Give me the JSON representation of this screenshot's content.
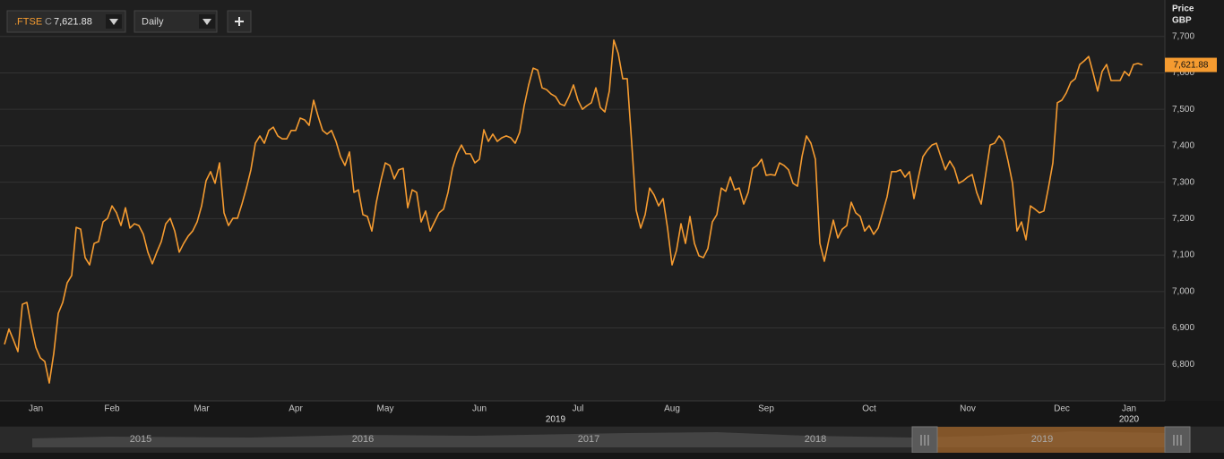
{
  "toolbar": {
    "instrument_prefix": "C",
    "price": "7,621.88",
    "interval": "Daily"
  },
  "chart_data": {
    "type": "line",
    "axis_title": "Price",
    "axis_unit": "GBP",
    "ylim": [
      6700,
      7800
    ],
    "yticks": [
      {
        "value": 6800,
        "label": "6,800"
      },
      {
        "value": 6900,
        "label": "6,900"
      },
      {
        "value": 7000,
        "label": "7,000"
      },
      {
        "value": 7100,
        "label": "7,100"
      },
      {
        "value": 7200,
        "label": "7,200"
      },
      {
        "value": 7300,
        "label": "7,300"
      },
      {
        "value": 7400,
        "label": "7,400"
      },
      {
        "value": 7500,
        "label": "7,500"
      },
      {
        "value": 7600,
        "label": "7,600"
      },
      {
        "value": 7700,
        "label": "7,700"
      }
    ],
    "grid": true,
    "last_price_label": "7,621.88",
    "categories": [
      null,
      null,
      null,
      null,
      null,
      null,
      null,
      "Jan",
      null,
      null,
      null,
      null,
      null,
      null,
      null,
      null,
      null,
      null,
      null,
      null,
      null,
      null,
      null,
      null,
      "Feb",
      null,
      null,
      null,
      null,
      null,
      null,
      null,
      null,
      null,
      null,
      null,
      null,
      null,
      null,
      null,
      null,
      null,
      null,
      null,
      "Mar",
      null,
      null,
      null,
      null,
      null,
      null,
      null,
      null,
      null,
      null,
      null,
      null,
      null,
      null,
      null,
      null,
      null,
      null,
      null,
      null,
      "Apr",
      null,
      null,
      null,
      null,
      null,
      null,
      null,
      null,
      null,
      null,
      null,
      null,
      null,
      null,
      null,
      null,
      null,
      null,
      null,
      "May",
      null,
      null,
      null,
      null,
      null,
      null,
      null,
      null,
      null,
      null,
      null,
      null,
      null,
      null,
      null,
      null,
      null,
      null,
      null,
      null,
      "Jun",
      null,
      null,
      null,
      null,
      null,
      null,
      null,
      null,
      null,
      null,
      null,
      null,
      null,
      null,
      null,
      null,
      null,
      null,
      null,
      null,
      null,
      "Jul",
      null,
      null,
      null,
      null,
      null,
      null,
      null,
      null,
      null,
      null,
      null,
      null,
      null,
      null,
      null,
      null,
      null,
      null,
      null,
      null,
      "Aug",
      null,
      null,
      null,
      null,
      null,
      null,
      null,
      null,
      null,
      null,
      null,
      null,
      null,
      null,
      null,
      null,
      null,
      null,
      null,
      null,
      "Sep",
      null,
      null,
      null,
      null,
      null,
      null,
      null,
      null,
      null,
      null,
      null,
      null,
      null,
      null,
      null,
      null,
      null,
      null,
      null,
      null,
      null,
      null,
      "Oct",
      null,
      null,
      null,
      null,
      null,
      null,
      null,
      null,
      null,
      null,
      null,
      null,
      null,
      null,
      null,
      null,
      null,
      null,
      null,
      null,
      null,
      "Nov",
      null,
      null,
      null,
      null,
      null,
      null,
      null,
      null,
      null,
      null,
      null,
      null,
      null,
      null,
      null,
      null,
      null,
      null,
      null,
      null,
      "Dec",
      null,
      null,
      null,
      null,
      null,
      null,
      null,
      null,
      null,
      null,
      null,
      null,
      null,
      null,
      "Jan",
      null,
      null,
      null
    ],
    "year_labels": [
      null,
      null,
      null,
      null,
      null,
      null,
      null,
      null,
      null,
      null,
      null,
      null,
      null,
      null,
      null,
      null,
      null,
      null,
      null,
      null,
      null,
      null,
      null,
      null,
      null,
      null,
      null,
      null,
      null,
      null,
      null,
      null,
      null,
      null,
      null,
      null,
      null,
      null,
      null,
      null,
      null,
      null,
      null,
      null,
      null,
      null,
      null,
      null,
      null,
      null,
      null,
      null,
      null,
      null,
      null,
      null,
      null,
      null,
      null,
      null,
      null,
      null,
      null,
      null,
      null,
      null,
      null,
      null,
      null,
      null,
      null,
      null,
      null,
      null,
      null,
      null,
      null,
      null,
      null,
      null,
      null,
      null,
      null,
      null,
      null,
      null,
      null,
      null,
      null,
      null,
      null,
      null,
      null,
      null,
      null,
      null,
      null,
      null,
      null,
      null,
      null,
      null,
      null,
      null,
      null,
      null,
      null,
      null,
      null,
      null,
      null,
      null,
      null,
      null,
      null,
      null,
      null,
      null,
      null,
      null,
      null,
      null,
      null,
      "2019",
      null,
      null,
      null,
      null,
      null,
      null,
      null,
      null,
      null,
      null,
      null,
      null,
      null,
      null,
      null,
      null,
      null,
      null,
      null,
      null,
      null,
      null,
      null,
      null,
      null,
      null,
      null,
      null,
      null,
      null,
      null,
      null,
      null,
      null,
      null,
      null,
      null,
      null,
      null,
      null,
      null,
      null,
      null,
      null,
      null,
      null,
      null,
      null,
      null,
      null,
      null,
      null,
      null,
      null,
      null,
      null,
      null,
      null,
      null,
      null,
      null,
      null,
      null,
      null,
      null,
      null,
      null,
      null,
      null,
      null,
      null,
      null,
      null,
      null,
      null,
      null,
      null,
      null,
      null,
      null,
      null,
      null,
      null,
      null,
      null,
      null,
      null,
      null,
      null,
      null,
      null,
      null,
      null,
      null,
      null,
      null,
      null,
      null,
      null,
      null,
      null,
      null,
      null,
      null,
      null,
      null,
      null,
      null,
      null,
      null,
      null,
      null,
      null,
      null,
      null,
      null,
      null,
      null,
      null,
      null,
      null,
      null,
      null,
      null,
      null,
      null,
      null,
      "2020",
      null,
      null,
      null
    ],
    "series": [
      {
        "name": ".FTSE",
        "color": "#f59b30",
        "values": [
          6855,
          6897,
          6867,
          6835,
          6965,
          6970,
          6904,
          6847,
          6818,
          6808,
          6749,
          6830,
          6940,
          6970,
          7024,
          7044,
          7176,
          7171,
          7093,
          7073,
          7132,
          7137,
          7191,
          7201,
          7235,
          7216,
          7181,
          7230,
          7174,
          7186,
          7181,
          7157,
          7108,
          7076,
          7108,
          7137,
          7186,
          7201,
          7166,
          7108,
          7132,
          7152,
          7166,
          7191,
          7235,
          7304,
          7329,
          7297,
          7353,
          7216,
          7181,
          7201,
          7201,
          7240,
          7284,
          7334,
          7407,
          7427,
          7407,
          7442,
          7451,
          7427,
          7419,
          7419,
          7442,
          7442,
          7476,
          7471,
          7456,
          7525,
          7481,
          7442,
          7432,
          7442,
          7412,
          7370,
          7346,
          7383,
          7272,
          7279,
          7211,
          7206,
          7166,
          7245,
          7304,
          7353,
          7346,
          7309,
          7334,
          7338,
          7230,
          7279,
          7272,
          7191,
          7221,
          7166,
          7191,
          7216,
          7226,
          7272,
          7338,
          7378,
          7402,
          7378,
          7378,
          7353,
          7363,
          7444,
          7412,
          7432,
          7412,
          7422,
          7427,
          7422,
          7407,
          7437,
          7510,
          7567,
          7613,
          7608,
          7559,
          7554,
          7542,
          7535,
          7515,
          7510,
          7535,
          7567,
          7525,
          7500,
          7510,
          7518,
          7559,
          7505,
          7493,
          7550,
          7690,
          7653,
          7584,
          7584,
          7407,
          7223,
          7174,
          7211,
          7284,
          7265,
          7235,
          7255,
          7174,
          7073,
          7113,
          7186,
          7132,
          7206,
          7132,
          7098,
          7093,
          7118,
          7191,
          7211,
          7284,
          7275,
          7314,
          7279,
          7284,
          7240,
          7272,
          7338,
          7346,
          7363,
          7319,
          7321,
          7319,
          7353,
          7346,
          7334,
          7297,
          7289,
          7370,
          7427,
          7407,
          7363,
          7132,
          7083,
          7142,
          7196,
          7147,
          7171,
          7181,
          7245,
          7216,
          7206,
          7166,
          7181,
          7157,
          7174,
          7216,
          7260,
          7329,
          7329,
          7334,
          7314,
          7329,
          7255,
          7314,
          7370,
          7388,
          7402,
          7407,
          7370,
          7334,
          7358,
          7338,
          7297,
          7304,
          7314,
          7321,
          7272,
          7240,
          7321,
          7402,
          7407,
          7427,
          7412,
          7358,
          7297,
          7166,
          7191,
          7142,
          7235,
          7226,
          7216,
          7221,
          7284,
          7353,
          7518,
          7525,
          7545,
          7574,
          7584,
          7623,
          7633,
          7645,
          7599,
          7550,
          7604,
          7623,
          7579,
          7579,
          7579,
          7604,
          7592,
          7623,
          7626,
          7621.88
        ]
      }
    ]
  },
  "navigator": {
    "years": [
      "2015",
      "2016",
      "2017",
      "2018",
      "2019"
    ]
  }
}
